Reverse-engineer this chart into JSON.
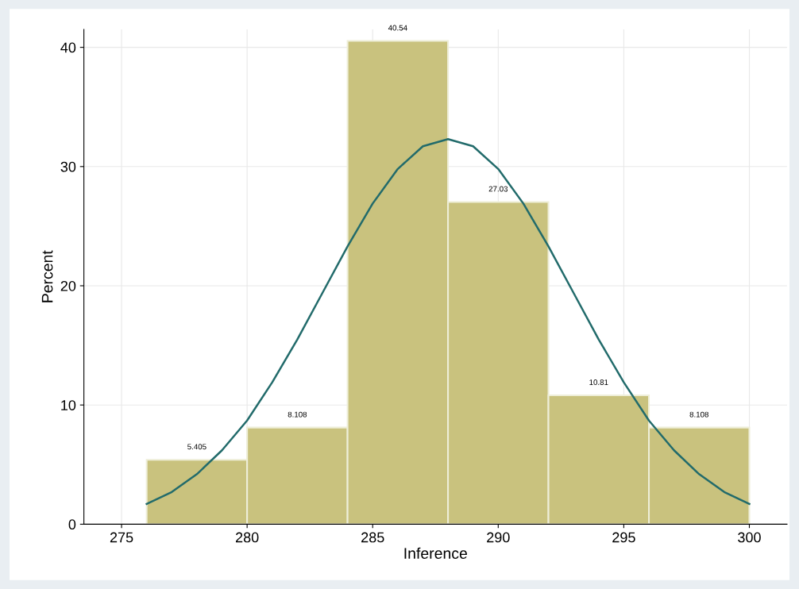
{
  "chart_data": {
    "type": "histogram",
    "xlabel": "Inference",
    "ylabel": "Percent",
    "bins": [
      276,
      280,
      284,
      288,
      292,
      296,
      300
    ],
    "values": [
      5.405,
      8.108,
      40.54,
      27.03,
      10.81,
      8.108
    ],
    "color": "#c9c27e",
    "value_labels": [
      "5.405",
      "8.108",
      "40.54",
      "27.03",
      "10.81",
      "8.108"
    ],
    "series": [
      {
        "type": "line",
        "color": "#226b6b",
        "x": [
          276,
          277,
          278,
          279,
          280,
          281,
          282,
          283,
          284,
          285,
          286,
          287,
          288,
          289,
          290,
          291,
          292,
          293,
          294,
          295,
          296,
          297,
          298,
          299,
          300
        ],
        "values": [
          1.7,
          2.7,
          4.2,
          6.2,
          8.7,
          11.9,
          15.5,
          19.4,
          23.3,
          26.9,
          29.8,
          31.7,
          32.3,
          31.7,
          29.8,
          26.9,
          23.3,
          19.4,
          15.5,
          11.9,
          8.7,
          6.2,
          4.2,
          2.7,
          1.7
        ]
      }
    ],
    "xlim": [
      273.5,
      301.5
    ],
    "xticks": [
      275,
      280,
      285,
      290,
      295,
      300
    ],
    "ylim": [
      0,
      41.5
    ],
    "yticks": [
      0,
      10,
      20,
      30,
      40
    ],
    "grid": true
  }
}
